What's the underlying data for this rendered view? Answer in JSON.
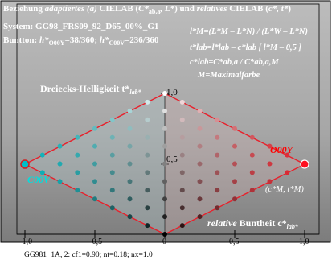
{
  "header": {
    "line1_a": "Beziehung ",
    "line1_b": "adaptiertes (a)",
    "line1_c": " CIELAB (",
    "line1_d": "C*",
    "line1_d_sub": "ab,a",
    "line1_e": ", L*",
    "line1_f": ") und ",
    "line1_g": "relatives",
    "line1_h": " CIELAB (",
    "line1_i": "c*, t*",
    "line1_j": ")",
    "line2": "System: GG98_FRS09_92_D65_00%_G1",
    "line3_a": "Buntton: ",
    "line3_b": "h*",
    "line3_b_sub": "O00Y",
    "line3_c": "=38/360; ",
    "line3_d": "h*",
    "line3_d_sub": "C00V",
    "line3_e": "=236/360"
  },
  "formulas": {
    "f1": "l*M=(L*M – L*N) / (L*W – L*N)",
    "f2": "t*lab=l*lab – c*lab [ l*M – 0,5 ]",
    "f3": "c*lab=C*ab,a / C*ab,a,M",
    "f4": "M=Maximalfarbe"
  },
  "labels": {
    "y_axis_title": "Dreiecks-Helligkeit  t*",
    "y_axis_sub": "lab*",
    "y_top": "1,0",
    "y_mid": "0,5",
    "right_color": "O00Y",
    "left_color": "C00V",
    "max_label": "(c*M, t*M)",
    "x_axis_title_a": "relative",
    "x_axis_title_b": " Buntheit c*",
    "x_axis_sub": "lab*"
  },
  "x_ticks": [
    "−1,0",
    "−0,5",
    "0",
    "0,5",
    "1,0"
  ],
  "footer": "GG981−1A, 2: cf1=0.90; nt=0.18; nx=1.0",
  "colors": {
    "background_top": "#b8b8b8",
    "background_bottom": "#808080",
    "right_hue": "#e8202b",
    "left_hue": "#00b8c0",
    "triangle_outline": "#e8202b",
    "accent_text_red": "#ff0000",
    "accent_text_cyan": "#00e0e0"
  }
}
